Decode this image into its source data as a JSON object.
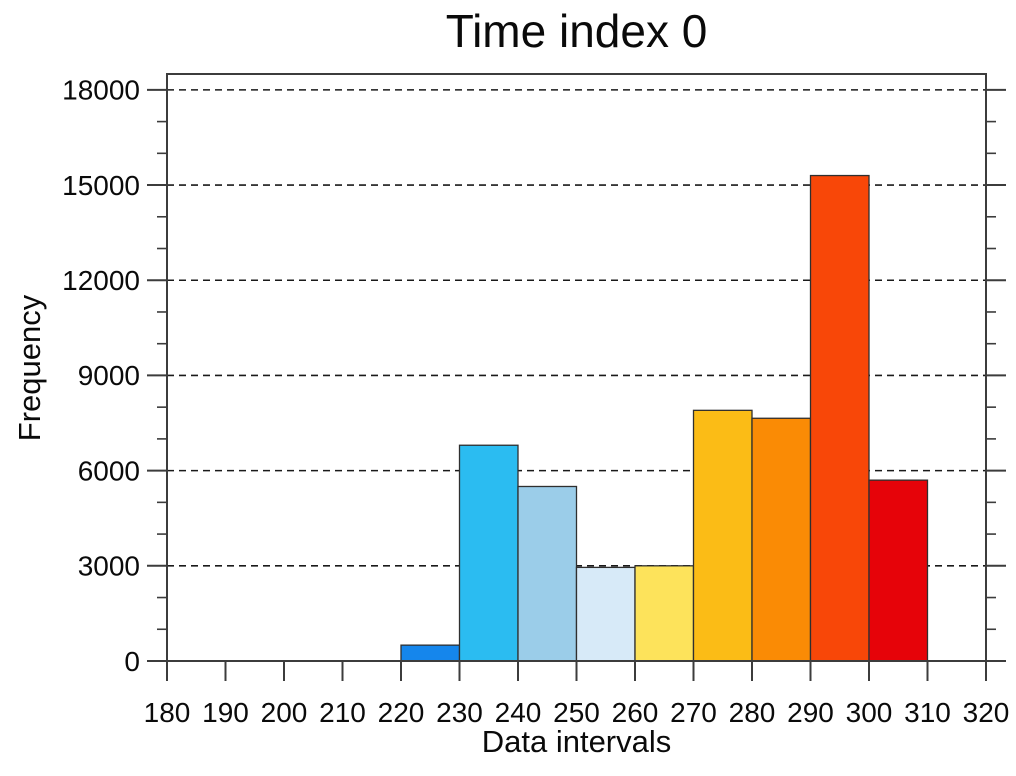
{
  "chart_data": {
    "type": "bar",
    "title": "Time index 0",
    "xlabel": "Data intervals",
    "ylabel": "Frequency",
    "xlim": [
      180,
      320
    ],
    "ylim": [
      0,
      18500
    ],
    "x_ticks": [
      180,
      190,
      200,
      210,
      220,
      230,
      240,
      250,
      260,
      270,
      280,
      290,
      300,
      310,
      320
    ],
    "y_ticks": [
      0,
      3000,
      6000,
      9000,
      12000,
      15000,
      18000
    ],
    "y_minor_step": 1000,
    "grid": "dashed horizontal lines at major y ticks",
    "legend_position": "none",
    "bins": {
      "edges": [
        220,
        230,
        240,
        250,
        260,
        270,
        280,
        290,
        300,
        310
      ],
      "values": [
        500,
        6800,
        5500,
        2950,
        3000,
        7900,
        7650,
        15300,
        5700
      ],
      "colors": [
        "#1586EC",
        "#2BBCF1",
        "#9BCDE9",
        "#D7EAF8",
        "#FDE35B",
        "#FBBC16",
        "#FA8B05",
        "#F84708",
        "#E60309"
      ]
    },
    "style": {
      "axis_color": "#3c3c3c",
      "gridline_color": "#1a1a1a",
      "bar_border_color": "#2f2f2f",
      "background": "#ffffff"
    }
  }
}
